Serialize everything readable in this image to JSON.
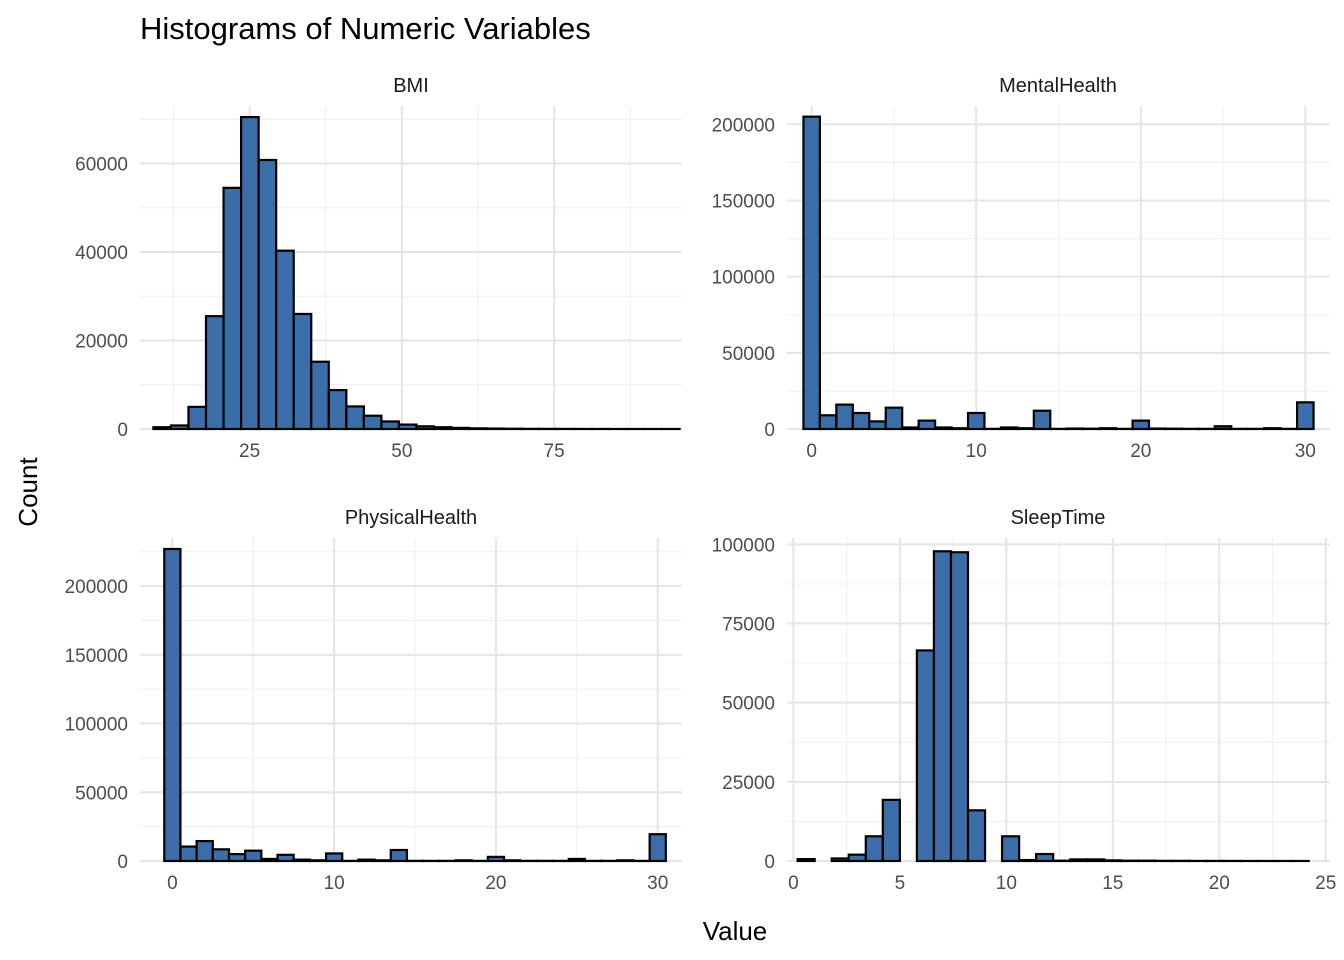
{
  "figure": {
    "title": "Histograms of Numeric Variables",
    "xlabel": "Value",
    "ylabel": "Count",
    "bar_fill": "#3b6ea8",
    "bar_stroke": "#000000"
  },
  "chart_data": [
    {
      "type": "bar",
      "panel": "BMI",
      "title": "BMI",
      "x_start": 9.2,
      "binwidth": 2.88,
      "values": [
        400,
        800,
        5000,
        25500,
        54500,
        70500,
        60800,
        40300,
        26000,
        15200,
        8800,
        5100,
        3000,
        1700,
        1000,
        600,
        400,
        250,
        150,
        100,
        60,
        40,
        30,
        20,
        10,
        10,
        5,
        5,
        5,
        5
      ],
      "xlim": [
        7,
        96
      ],
      "ylim": [
        0,
        73000
      ],
      "xticks": [
        25,
        50,
        75
      ],
      "yticks": [
        0,
        20000,
        40000,
        60000
      ],
      "grid": true
    },
    {
      "type": "bar",
      "panel": "MentalHealth",
      "title": "MentalHealth",
      "x_start": -0.5,
      "binwidth": 1,
      "values": [
        205000,
        9000,
        16000,
        10500,
        5000,
        14000,
        1000,
        5500,
        1000,
        500,
        10500,
        100,
        1000,
        500,
        12000,
        100,
        300,
        200,
        500,
        100,
        5500,
        300,
        200,
        100,
        100,
        1800,
        100,
        100,
        500,
        100,
        17500
      ],
      "xlim": [
        -1.5,
        31.5
      ],
      "ylim": [
        0,
        212000
      ],
      "xticks": [
        0,
        10,
        20,
        30
      ],
      "yticks": [
        0,
        50000,
        100000,
        150000,
        200000
      ],
      "grid": true
    },
    {
      "type": "bar",
      "panel": "PhysicalHealth",
      "title": "PhysicalHealth",
      "x_start": -0.5,
      "binwidth": 1,
      "values": [
        227000,
        10500,
        14500,
        8500,
        5000,
        7500,
        1500,
        4500,
        1000,
        500,
        5500,
        100,
        1000,
        500,
        8000,
        100,
        100,
        100,
        500,
        100,
        3000,
        500,
        100,
        100,
        100,
        1500,
        100,
        100,
        500,
        100,
        19500
      ],
      "xlim": [
        -2,
        31.5
      ],
      "ylim": [
        0,
        235000
      ],
      "xticks": [
        0,
        10,
        20,
        30
      ],
      "yticks": [
        0,
        50000,
        100000,
        150000,
        200000
      ],
      "grid": true
    },
    {
      "type": "bar",
      "panel": "SleepTime",
      "title": "SleepTime",
      "x_start": 0.2,
      "binwidth": 0.8,
      "values": [
        600,
        0,
        800,
        2000,
        7800,
        19300,
        0,
        66500,
        97800,
        97500,
        16000,
        0,
        7800,
        300,
        2200,
        100,
        500,
        500,
        200,
        100,
        100,
        50,
        50,
        20,
        20,
        20,
        10,
        10,
        5,
        5
      ],
      "xlim": [
        -0.3,
        25.2
      ],
      "ylim": [
        0,
        102000
      ],
      "xticks": [
        0,
        5,
        10,
        15,
        20,
        25
      ],
      "yticks": [
        0,
        25000,
        50000,
        75000,
        100000
      ],
      "grid": true
    }
  ]
}
